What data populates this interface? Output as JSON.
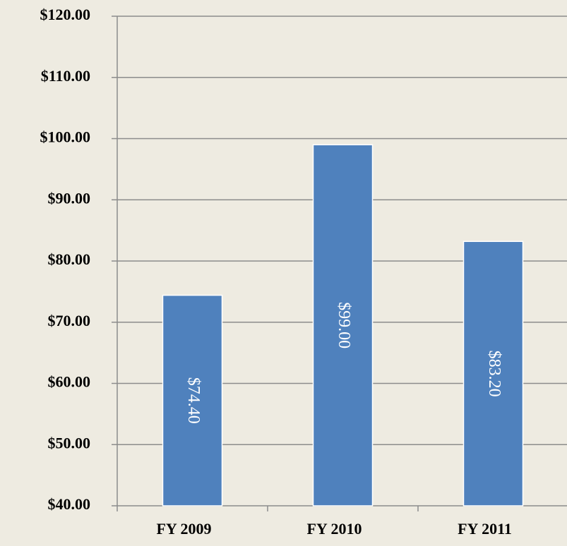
{
  "chart_data": {
    "type": "bar",
    "categories": [
      "FY 2009",
      "FY 2010",
      "FY 2011"
    ],
    "values": [
      74.4,
      99.0,
      83.2
    ],
    "value_labels": [
      "$74.40",
      "$99.00",
      "$83.20"
    ],
    "color": "#4f81bd",
    "ylim": [
      40,
      120
    ],
    "yticks": [
      {
        "value": 40,
        "label": "$40.00"
      },
      {
        "value": 50,
        "label": "$50.00"
      },
      {
        "value": 60,
        "label": "$60.00"
      },
      {
        "value": 70,
        "label": "$70.00"
      },
      {
        "value": 80,
        "label": "$80.00"
      },
      {
        "value": 90,
        "label": "$90.00"
      },
      {
        "value": 100,
        "label": "$100.00"
      },
      {
        "value": 110,
        "label": "$110.00"
      },
      {
        "value": 120,
        "label": "$120.00"
      }
    ],
    "grid": true
  }
}
